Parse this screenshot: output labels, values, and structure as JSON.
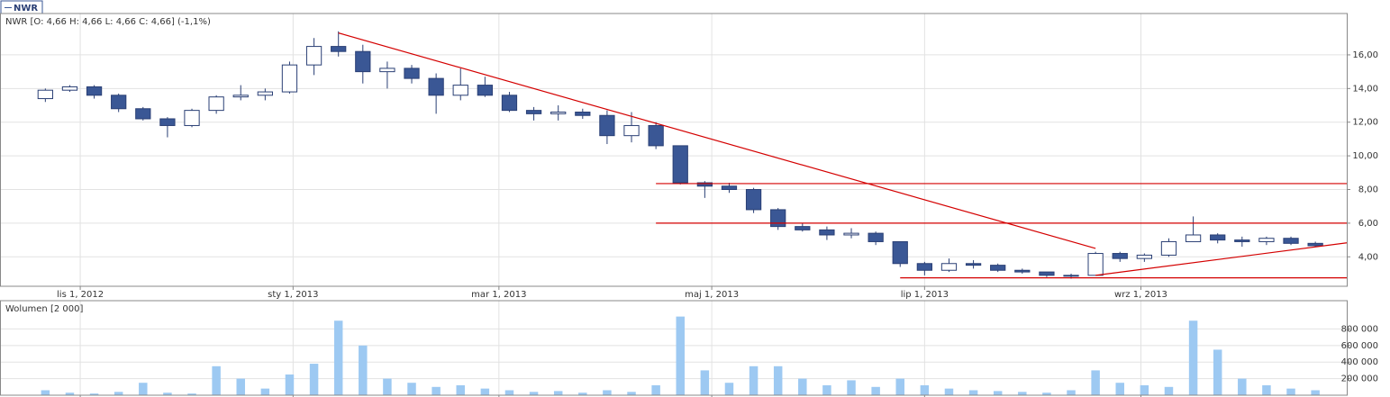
{
  "chart_data": [
    {
      "type": "candlestick",
      "symbol": "NWR",
      "title": "NWR [O: 4,66  H: 4,66  L: 4,66  C: 4,66] (-1,1%)",
      "x": [
        "2012-10-22",
        "2012-10-29",
        "2012-11-05",
        "2012-11-12",
        "2012-11-19",
        "2012-11-26",
        "2012-12-03",
        "2012-12-10",
        "2012-12-17",
        "2012-12-24",
        "2012-12-31",
        "2013-01-07",
        "2013-01-14",
        "2013-01-21",
        "2013-01-28",
        "2013-02-04",
        "2013-02-11",
        "2013-02-18",
        "2013-02-25",
        "2013-03-04",
        "2013-03-11",
        "2013-03-18",
        "2013-03-25",
        "2013-04-01",
        "2013-04-08",
        "2013-04-15",
        "2013-04-22",
        "2013-04-29",
        "2013-05-06",
        "2013-05-13",
        "2013-05-20",
        "2013-05-27",
        "2013-06-03",
        "2013-06-10",
        "2013-06-17",
        "2013-06-24",
        "2013-07-01",
        "2013-07-08",
        "2013-07-15",
        "2013-07-22",
        "2013-07-29",
        "2013-08-05",
        "2013-08-12",
        "2013-08-19",
        "2013-08-26",
        "2013-09-02",
        "2013-09-09",
        "2013-09-16",
        "2013-09-23",
        "2013-09-30",
        "2013-10-07",
        "2013-10-14",
        "2013-10-21"
      ],
      "open": [
        13.4,
        13.9,
        14.1,
        13.6,
        12.8,
        12.2,
        11.8,
        12.7,
        13.5,
        13.6,
        13.8,
        15.4,
        16.5,
        16.2,
        15.0,
        15.2,
        14.6,
        13.6,
        14.2,
        13.6,
        12.7,
        12.5,
        12.6,
        12.4,
        11.2,
        11.8,
        10.6,
        8.4,
        8.2,
        8.0,
        6.8,
        5.8,
        5.6,
        5.3,
        5.4,
        4.9,
        3.6,
        3.2,
        3.6,
        3.5,
        3.2,
        3.1,
        2.9,
        2.9,
        4.2,
        3.9,
        4.1,
        4.9,
        5.3,
        5.0,
        4.9,
        5.1,
        4.8
      ],
      "high": [
        14.0,
        14.2,
        14.2,
        13.7,
        12.9,
        12.3,
        12.8,
        13.6,
        14.2,
        14.0,
        15.6,
        17.0,
        17.4,
        16.6,
        15.6,
        15.4,
        14.9,
        15.2,
        14.7,
        13.8,
        12.9,
        13.0,
        12.8,
        12.7,
        12.6,
        12.0,
        10.6,
        8.5,
        8.4,
        8.1,
        6.9,
        6.0,
        5.8,
        5.7,
        5.5,
        4.9,
        3.7,
        3.9,
        3.8,
        3.6,
        3.3,
        3.1,
        3.0,
        4.3,
        4.3,
        4.2,
        5.1,
        6.4,
        5.4,
        5.2,
        5.2,
        5.2,
        4.9
      ],
      "low": [
        13.2,
        13.8,
        13.4,
        12.6,
        12.1,
        11.1,
        11.7,
        12.5,
        13.3,
        13.3,
        13.7,
        14.8,
        15.9,
        14.3,
        14.0,
        14.3,
        12.5,
        13.3,
        13.5,
        12.6,
        12.1,
        12.1,
        12.2,
        10.7,
        10.8,
        10.4,
        8.3,
        7.5,
        7.8,
        6.6,
        5.6,
        5.5,
        5.0,
        5.1,
        4.7,
        3.4,
        2.9,
        3.1,
        3.3,
        3.1,
        3.0,
        2.8,
        2.7,
        2.9,
        3.7,
        3.7,
        4.0,
        4.9,
        4.8,
        4.6,
        4.7,
        4.7,
        4.6
      ],
      "close": [
        13.9,
        14.1,
        13.6,
        12.8,
        12.2,
        11.8,
        12.7,
        13.5,
        13.6,
        13.8,
        15.4,
        16.5,
        16.2,
        15.0,
        15.2,
        14.6,
        13.6,
        14.2,
        13.6,
        12.7,
        12.5,
        12.6,
        12.4,
        11.2,
        11.8,
        10.6,
        8.4,
        8.2,
        8.0,
        6.8,
        5.8,
        5.6,
        5.3,
        5.4,
        4.9,
        3.6,
        3.2,
        3.6,
        3.5,
        3.2,
        3.1,
        2.9,
        2.9,
        4.2,
        3.9,
        4.1,
        4.9,
        5.3,
        5.0,
        4.9,
        5.1,
        4.8,
        4.66
      ],
      "up_color": "#ffffff",
      "down_color": "#3a5795",
      "edge_color": "#2a3f75",
      "xlim": [
        "2012-10-09",
        "2013-10-30"
      ],
      "xticks": [
        {
          "value": "2012-11-01",
          "label": "lis 1, 2012"
        },
        {
          "value": "2013-01-01",
          "label": "sty 1, 2013"
        },
        {
          "value": "2013-03-01",
          "label": "mar 1, 2013"
        },
        {
          "value": "2013-05-01",
          "label": "maj 1, 2013"
        },
        {
          "value": "2013-07-01",
          "label": "lip 1, 2013"
        },
        {
          "value": "2013-09-01",
          "label": "wrz 1, 2013"
        }
      ],
      "ylim": [
        2.25,
        18.35
      ],
      "yticks": [
        {
          "value": 4,
          "label": "4,00"
        },
        {
          "value": 6,
          "label": "6,00"
        },
        {
          "value": 8,
          "label": "8,00"
        },
        {
          "value": 10,
          "label": "10,00"
        },
        {
          "value": 12,
          "label": "12,00"
        },
        {
          "value": 14,
          "label": "14,00"
        },
        {
          "value": 16,
          "label": "16,00"
        }
      ],
      "grid": true,
      "line_color": "#d40000",
      "lines": [
        {
          "x": [
            "2013-01-14",
            "2013-08-19"
          ],
          "y": [
            17.3,
            4.5
          ]
        },
        {
          "x": [
            "2013-04-15",
            "2013-10-30"
          ],
          "y": [
            8.35,
            8.35
          ]
        },
        {
          "x": [
            "2013-04-15",
            "2013-10-30"
          ],
          "y": [
            6.0,
            6.0
          ]
        },
        {
          "x": [
            "2013-06-24",
            "2013-10-30"
          ],
          "y": [
            2.75,
            2.75
          ]
        },
        {
          "x": [
            "2013-08-19",
            "2013-10-30"
          ],
          "y": [
            2.9,
            4.83
          ]
        }
      ]
    },
    {
      "type": "bar",
      "title": "Wolumen [2 000]",
      "x": [
        "2012-10-22",
        "2012-10-29",
        "2012-11-05",
        "2012-11-12",
        "2012-11-19",
        "2012-11-26",
        "2012-12-03",
        "2012-12-10",
        "2012-12-17",
        "2012-12-24",
        "2012-12-31",
        "2013-01-07",
        "2013-01-14",
        "2013-01-21",
        "2013-01-28",
        "2013-02-04",
        "2013-02-11",
        "2013-02-18",
        "2013-02-25",
        "2013-03-04",
        "2013-03-11",
        "2013-03-18",
        "2013-03-25",
        "2013-04-01",
        "2013-04-08",
        "2013-04-15",
        "2013-04-22",
        "2013-04-29",
        "2013-05-06",
        "2013-05-13",
        "2013-05-20",
        "2013-05-27",
        "2013-06-03",
        "2013-06-10",
        "2013-06-17",
        "2013-06-24",
        "2013-07-01",
        "2013-07-08",
        "2013-07-15",
        "2013-07-22",
        "2013-07-29",
        "2013-08-05",
        "2013-08-12",
        "2013-08-19",
        "2013-08-26",
        "2013-09-02",
        "2013-09-09",
        "2013-09-16",
        "2013-09-23",
        "2013-09-30",
        "2013-10-07",
        "2013-10-14",
        "2013-10-21"
      ],
      "values": [
        60000,
        30000,
        20000,
        40000,
        150000,
        30000,
        20000,
        350000,
        200000,
        80000,
        250000,
        380000,
        900000,
        600000,
        200000,
        150000,
        100000,
        120000,
        80000,
        60000,
        40000,
        50000,
        30000,
        60000,
        40000,
        120000,
        950000,
        300000,
        150000,
        350000,
        350000,
        200000,
        120000,
        180000,
        100000,
        200000,
        120000,
        80000,
        60000,
        50000,
        40000,
        30000,
        60000,
        300000,
        150000,
        120000,
        100000,
        900000,
        550000,
        200000,
        120000,
        80000,
        60000
      ],
      "color": "#9dc9f2",
      "xlim": [
        "2012-10-09",
        "2013-10-30"
      ],
      "xticks": [
        "2012-11-01",
        "2013-01-01",
        "2013-03-01",
        "2013-05-01",
        "2013-07-01",
        "2013-09-01"
      ],
      "ylim": [
        0,
        1120000
      ],
      "yticks": [
        {
          "value": 200000,
          "label": "200 000"
        },
        {
          "value": 400000,
          "label": "400 000"
        },
        {
          "value": 600000,
          "label": "600 000"
        },
        {
          "value": 800000,
          "label": "800 000"
        }
      ],
      "grid": true
    }
  ]
}
